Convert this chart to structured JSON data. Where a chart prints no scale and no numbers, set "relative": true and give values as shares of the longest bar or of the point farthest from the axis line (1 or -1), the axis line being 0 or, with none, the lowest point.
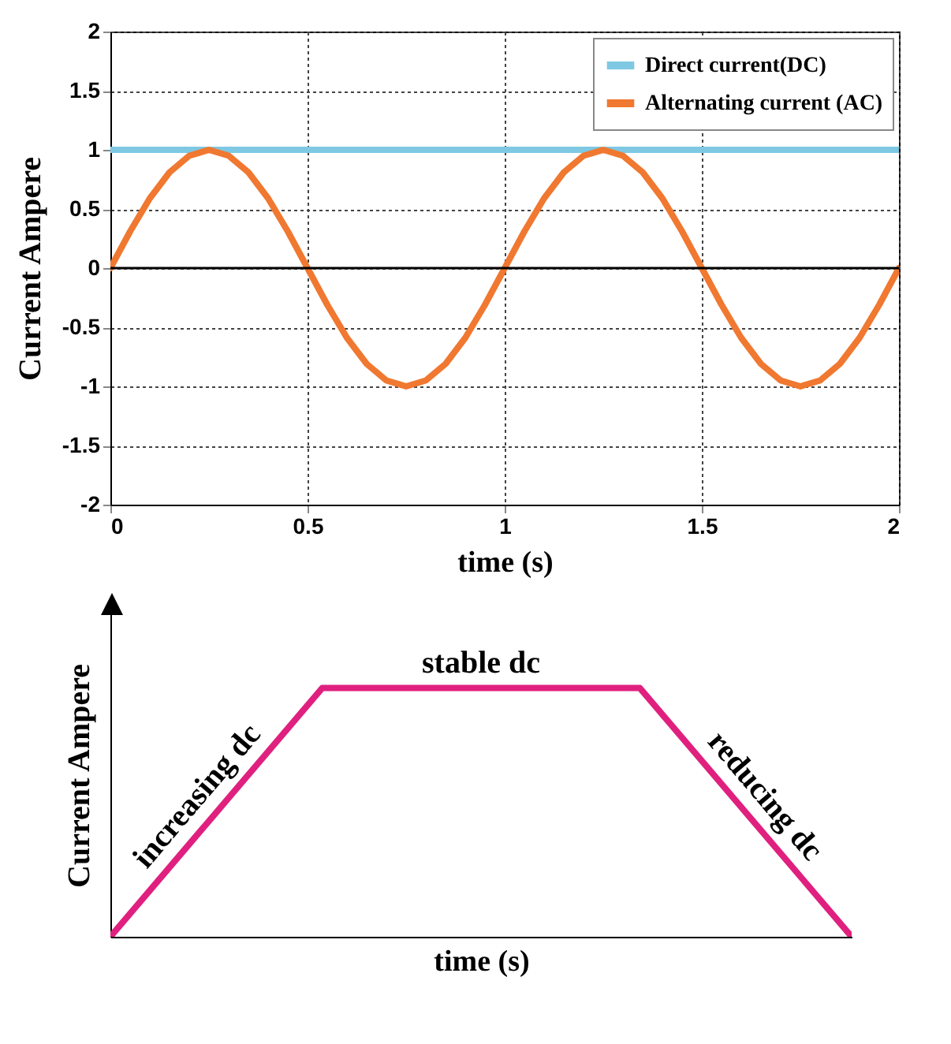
{
  "chart_data": [
    {
      "type": "line",
      "xlabel": "time (s)",
      "ylabel": "Current Ampere",
      "xlim": [
        0,
        2
      ],
      "xticks": [
        0,
        0.5,
        1,
        1.5,
        2
      ],
      "ylim": [
        -2,
        2
      ],
      "yticks": [
        -2,
        -1.5,
        -1,
        -0.5,
        0,
        0.5,
        1,
        1.5,
        2
      ],
      "grid": true,
      "legend": "top right",
      "ref_lines": [
        {
          "axis": "y",
          "value": 0,
          "color": "#000000"
        }
      ],
      "series": [
        {
          "name": "Direct current(DC)",
          "color": "#7ec8e3",
          "x": [
            0,
            2
          ],
          "values": [
            1,
            1
          ]
        },
        {
          "name": "Alternating current (AC)",
          "color": "#f07830",
          "x": [
            0,
            0.05,
            0.1,
            0.15,
            0.2,
            0.25,
            0.3,
            0.35,
            0.4,
            0.45,
            0.5,
            0.55,
            0.6,
            0.65,
            0.7,
            0.75,
            0.8,
            0.85,
            0.9,
            0.95,
            1,
            1.05,
            1.1,
            1.15,
            1.2,
            1.25,
            1.3,
            1.35,
            1.4,
            1.45,
            1.5,
            1.55,
            1.6,
            1.65,
            1.7,
            1.75,
            1.8,
            1.85,
            1.9,
            1.95,
            2
          ],
          "values": [
            0,
            0.31,
            0.59,
            0.81,
            0.95,
            1,
            0.95,
            0.81,
            0.59,
            0.31,
            0,
            -0.31,
            -0.59,
            -0.81,
            -0.95,
            -1,
            -0.95,
            -0.81,
            -0.59,
            -0.31,
            0,
            0.31,
            0.59,
            0.81,
            0.95,
            1,
            0.95,
            0.81,
            0.59,
            0.31,
            0,
            -0.31,
            -0.59,
            -0.81,
            -0.95,
            -1,
            -0.95,
            -0.81,
            -0.59,
            -0.31,
            0
          ]
        }
      ]
    },
    {
      "type": "line",
      "relative": true,
      "xlabel": "time (s)",
      "ylabel": "Current Ampere",
      "categories": [
        null,
        null,
        null,
        null,
        null,
        null,
        null,
        null
      ],
      "values": [
        0,
        0.5,
        1,
        1,
        1,
        1,
        0.5,
        0
      ],
      "color": "#e0207f",
      "annotations": [
        "increasing dc",
        "stable dc",
        "reducing dc"
      ]
    }
  ]
}
